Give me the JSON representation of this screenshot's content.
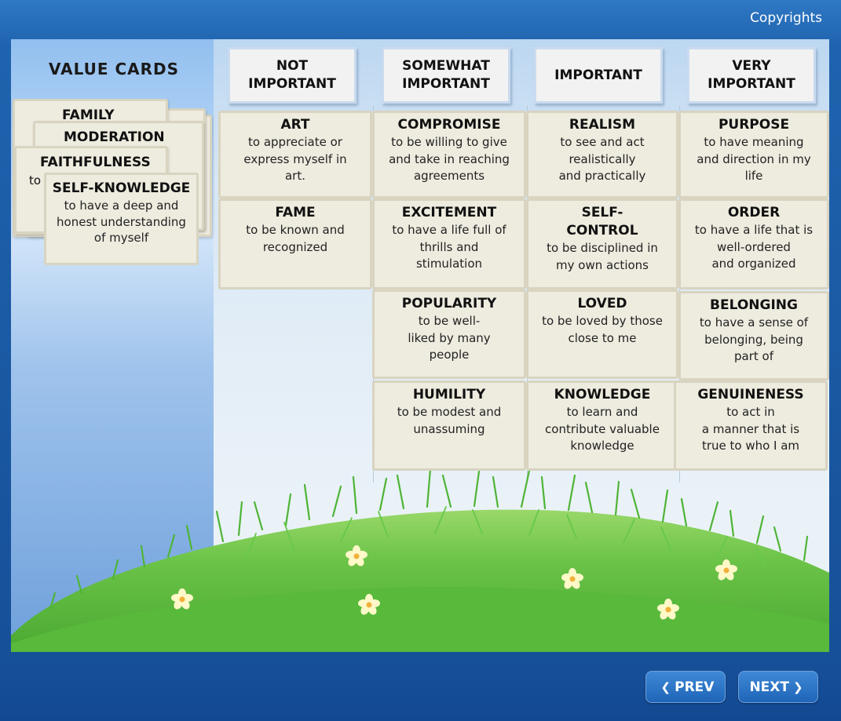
{
  "header": {
    "copyrights_label": "Copyrights"
  },
  "deck": {
    "title": "VALUE CARDS",
    "cards": [
      {
        "title": "FAMILY",
        "desc": ""
      },
      {
        "title": "MODERATION",
        "desc": ""
      },
      {
        "title": "FAITHFULNESS",
        "desc": "to"
      },
      {
        "title": "SELF-KNOWLEDGE",
        "desc": "to have a deep and\nhonest understanding\nof myself"
      }
    ]
  },
  "columns": [
    {
      "label": "NOT\nIMPORTANT"
    },
    {
      "label": "SOMEWHAT\nIMPORTANT"
    },
    {
      "label": "IMPORTANT"
    },
    {
      "label": "VERY\nIMPORTANT"
    }
  ],
  "cards": {
    "not_important": [
      {
        "title": "ART",
        "desc": "to appreciate or\nexpress myself in\nart."
      },
      {
        "title": "FAME",
        "desc": "to be known and\nrecognized"
      }
    ],
    "somewhat_important": [
      {
        "title": "COMPROMISE",
        "desc": "to be willing to give\nand take in reaching\nagreements"
      },
      {
        "title": "EXCITEMENT",
        "desc": "to have a life full of\nthrills and\nstimulation"
      },
      {
        "title": "POPULARITY",
        "desc": "to be well-\nliked by many\npeople"
      },
      {
        "title": "HUMILITY",
        "desc": "to be modest and\nunassuming"
      }
    ],
    "important": [
      {
        "title": "REALISM",
        "desc": "to see and act\nrealistically\nand practically"
      },
      {
        "title": "SELF-\nCONTROL",
        "desc": "to be disciplined in\nmy own actions"
      },
      {
        "title": "LOVED",
        "desc": "to be loved by those\nclose to me"
      },
      {
        "title": "KNOWLEDGE",
        "desc": "to learn and\ncontribute valuable\nknowledge"
      }
    ],
    "very_important": [
      {
        "title": "PURPOSE",
        "desc": "to have meaning\nand direction in my\nlife"
      },
      {
        "title": "ORDER",
        "desc": "to have a life that is\nwell-ordered\nand organized"
      },
      {
        "title": "BELONGING",
        "desc": "to have a sense of\nbelonging, being\npart of"
      },
      {
        "title": "GENUINENESS",
        "desc": "to act in\na manner that is\ntrue to who I am"
      }
    ]
  },
  "nav": {
    "prev_label": "PREV",
    "next_label": "NEXT"
  },
  "colors": {
    "frame": "#1c5aa6",
    "card_bg": "#eeebdf",
    "card_border": "#d8d4c0",
    "button": "#2a72c4",
    "grass": "#5cbb3e"
  }
}
